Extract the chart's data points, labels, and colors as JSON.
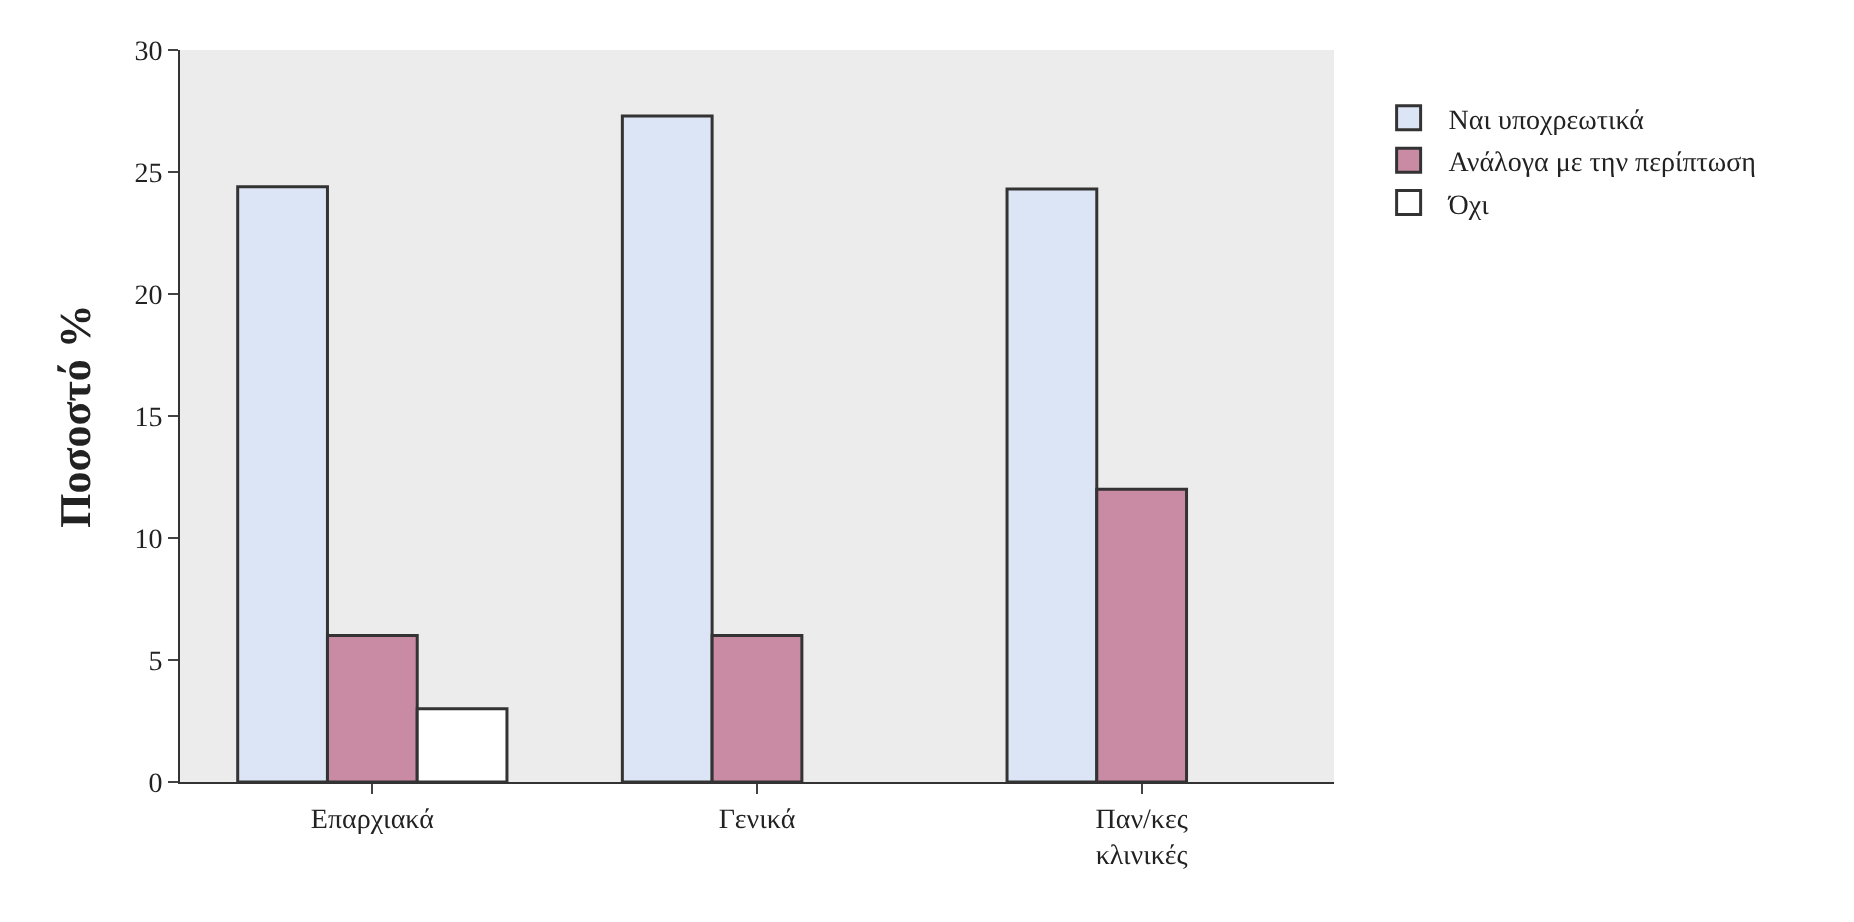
{
  "chart_data": {
    "type": "bar",
    "ylabel": "Ποσοστό %",
    "categories": [
      "Επαρχιακά",
      "Γενικά",
      "Παν/κες κλινικές"
    ],
    "series": [
      {
        "name": "Ναι υποχρεωτικά",
        "color": "#dce5f5",
        "values": [
          24.4,
          27.3,
          24.3
        ]
      },
      {
        "name": "Ανάλογα με την περίπτωση",
        "color": "#c98ba3",
        "values": [
          6,
          6,
          12
        ]
      },
      {
        "name": "Όχι",
        "color": "#ffffff",
        "values": [
          3,
          null,
          null
        ]
      }
    ],
    "ylim": [
      0,
      30
    ],
    "yticks": [
      0,
      5,
      10,
      15,
      20,
      25,
      30
    ],
    "legend": "right"
  }
}
